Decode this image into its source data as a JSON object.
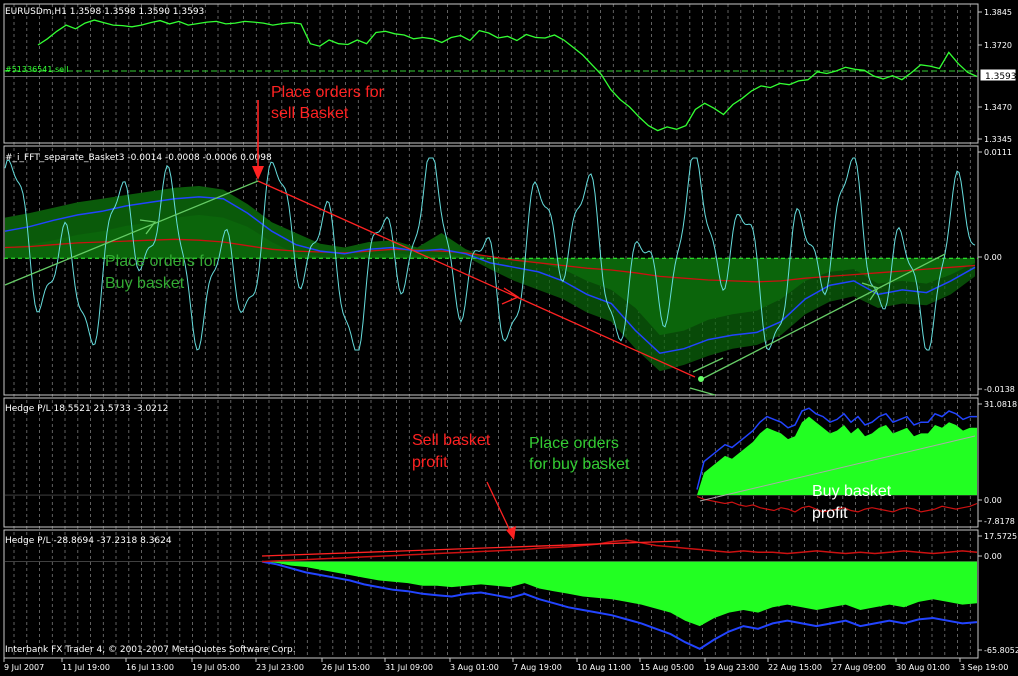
{
  "colors": {
    "background": "#000000",
    "frame": "#c8c8c8",
    "grid": "#a0a0a0",
    "price": "#33ff33",
    "cyan": "#66dddd",
    "blue": "#2244ff",
    "dark_red": "#cc1111",
    "fill_dark_green": "#0a5a0a",
    "fill_bright_green": "#22ff22",
    "ann_red": "#ff2222",
    "ann_green": "#33cc33",
    "ann_white": "#ffffff"
  },
  "panes": {
    "price": {
      "header": "EURUSDm,H1  1.3598 1.3598 1.3590 1.3593",
      "order_label": "#51336541 sell",
      "current_price": "1.3593",
      "ticks": [
        "1.3845",
        "1.3720",
        "1.3470",
        "1.3345"
      ]
    },
    "fft": {
      "header": "#_i_FFT_separate_Basket3 -0.0014 -0.0008 -0.0006 0.0098",
      "ticks": [
        "0.0111",
        "0.00",
        "-0.0138"
      ]
    },
    "pl_buy": {
      "header": "Hedge P/L 18.5521 21.5733 -3.0212",
      "ticks": [
        "31.0818",
        "0.00",
        "-7.8178"
      ]
    },
    "pl_sell": {
      "header": "Hedge P/L -28.8694 -37.2318 8.3624",
      "ticks": [
        "17.5725",
        "0.00",
        "-65.8052"
      ]
    }
  },
  "annotations": {
    "sell_place_1": "Place orders for",
    "sell_place_2": "sell Basket",
    "buy_place_left_1": "Place orders for",
    "buy_place_left_2": "Buy basket",
    "buy_place_right_1": "Place orders",
    "buy_place_right_2": "for buy basket",
    "sell_profit_1": "Sell basket",
    "sell_profit_2": "profit",
    "buy_profit_1": "Buy basket",
    "buy_profit_2": "profit"
  },
  "footer": "Interbank FX Trader 4, © 2001-2007 MetaQuotes Software Corp.",
  "chart_data": {
    "type": "line",
    "x_ticks": [
      "9 Jul 2007",
      "11 Jul 19:00",
      "16 Jul 13:00",
      "19 Jul 05:00",
      "23 Jul 23:00",
      "26 Jul 15:00",
      "31 Jul 09:00",
      "3 Aug 01:00",
      "7 Aug 19:00",
      "10 Aug 11:00",
      "15 Aug 05:00",
      "19 Aug 23:00",
      "22 Aug 15:00",
      "27 Aug 09:00",
      "30 Aug 01:00",
      "3 Sep 19:00"
    ],
    "price": {
      "symbol": "EURUSDm,H1",
      "ylim": [
        1.3325,
        1.3885
      ],
      "current": 1.3593,
      "order_level": 1.3615,
      "series": [
        1.372,
        1.3745,
        1.3775,
        1.38,
        1.3785,
        1.3808,
        1.382,
        1.381,
        1.38,
        1.3798,
        1.3793,
        1.38,
        1.381,
        1.3818,
        1.3805,
        1.3815,
        1.38,
        1.3806,
        1.3812,
        1.3815,
        1.3805,
        1.3808,
        1.3815,
        1.3812,
        1.3808,
        1.38,
        1.3806,
        1.381,
        1.3805,
        1.3725,
        1.3715,
        1.374,
        1.3725,
        1.3722,
        1.374,
        1.3725,
        1.377,
        1.3775,
        1.3765,
        1.376,
        1.3745,
        1.375,
        1.3745,
        1.373,
        1.375,
        1.3758,
        1.3738,
        1.3778,
        1.3768,
        1.3748,
        1.3755,
        1.3738,
        1.3762,
        1.375,
        1.3748,
        1.376,
        1.374,
        1.371,
        1.368,
        1.364,
        1.36,
        1.354,
        1.35,
        1.347,
        1.343,
        1.3395,
        1.3375,
        1.339,
        1.338,
        1.3395,
        1.346,
        1.3485,
        1.3465,
        1.344,
        1.348,
        1.3505,
        1.3535,
        1.3555,
        1.3548,
        1.3565,
        1.356,
        1.3575,
        1.358,
        1.3612,
        1.3605,
        1.3615,
        1.363,
        1.3622,
        1.3618,
        1.3595,
        1.3583,
        1.3596,
        1.358,
        1.3608,
        1.364,
        1.3635,
        1.3625,
        1.369,
        1.3645,
        1.361,
        1.3593
      ]
    },
    "fft": {
      "ylim": [
        -0.0138,
        0.0111
      ],
      "zero": 0,
      "blue_upper": [
        0.003,
        0.0035,
        0.0042,
        0.0048,
        0.0052,
        0.0058,
        0.0062,
        0.0066,
        0.0068,
        0.0066,
        0.005,
        0.003,
        0.0015,
        0.0008,
        0.0005,
        0.001,
        0.0012,
        0.0008,
        0.001,
        0.0005,
        -0.0005,
        -0.001,
        -0.0015,
        -0.0025,
        -0.004,
        -0.005,
        -0.008,
        -0.0105,
        -0.01,
        -0.009,
        -0.0085,
        -0.0082,
        -0.007,
        -0.0045,
        -0.003,
        -0.0025,
        -0.004,
        -0.0035,
        -0.0038,
        -0.0025,
        -0.001
      ],
      "green_upper": [
        0.0045,
        0.005,
        0.0056,
        0.0062,
        0.0066,
        0.007,
        0.0074,
        0.0078,
        0.008,
        0.0076,
        0.006,
        0.004,
        0.0028,
        0.0016,
        0.0012,
        0.0018,
        0.002,
        0.0012,
        0.0028,
        0.001,
        0.0,
        -0.0002,
        -0.0005,
        -0.0012,
        -0.0025,
        -0.0035,
        -0.0055,
        -0.0085,
        -0.008,
        -0.0068,
        -0.0062,
        -0.0058,
        -0.0045,
        -0.0025,
        -0.0015,
        -0.0012,
        -0.0028,
        -0.0025,
        -0.0028,
        -0.0018,
        -0.0005
      ],
      "green_lower": [
        0.0012,
        0.0015,
        0.002,
        0.0026,
        0.003,
        0.0036,
        0.004,
        0.0045,
        0.0048,
        0.0045,
        0.0035,
        0.0018,
        0.0005,
        0.0002,
        0.0001,
        0.0004,
        0.0006,
        0.0003,
        0.0004,
        0.0002,
        -0.0012,
        -0.0025,
        -0.0035,
        -0.0045,
        -0.006,
        -0.007,
        -0.01,
        -0.0125,
        -0.0118,
        -0.0108,
        -0.01,
        -0.0096,
        -0.0085,
        -0.0062,
        -0.0048,
        -0.0042,
        -0.0055,
        -0.005,
        -0.0052,
        -0.004,
        -0.002
      ],
      "dark_red": [
        0.0012,
        0.0013,
        0.0015,
        0.0017,
        0.0018,
        0.0019,
        0.002,
        0.0021,
        0.002,
        0.0018,
        0.0014,
        0.001,
        0.0008,
        0.0007,
        0.0006,
        0.0008,
        0.001,
        0.0009,
        0.0008,
        0.0006,
        0.0002,
        -0.0002,
        -0.0005,
        -0.0008,
        -0.0011,
        -0.0013,
        -0.0016,
        -0.002,
        -0.0022,
        -0.0024,
        -0.0025,
        -0.0026,
        -0.0025,
        -0.0022,
        -0.002,
        -0.0018,
        -0.0016,
        -0.0014,
        -0.0012,
        -0.001,
        -0.0008
      ]
    },
    "pl_buy": {
      "ylim": [
        -7.8178,
        31.0818
      ],
      "start_index": 63,
      "green": [
        0,
        8,
        10,
        12,
        14,
        13,
        15,
        17,
        19,
        22,
        24,
        23,
        22,
        20,
        21,
        26,
        28,
        26,
        24,
        22,
        23,
        25,
        22,
        24,
        21,
        22,
        24,
        25,
        22,
        23,
        24,
        21,
        22,
        22,
        25,
        24,
        26,
        25,
        23,
        24,
        24
      ],
      "blue": [
        2,
        12,
        14,
        16,
        18,
        17,
        19,
        21,
        23,
        26,
        28,
        27,
        26,
        24,
        25,
        30,
        31,
        29,
        28,
        26,
        27,
        29,
        26,
        28,
        25,
        26,
        28,
        29,
        26,
        27,
        28,
        25,
        26,
        26,
        29,
        28,
        30,
        29,
        27,
        28,
        28
      ],
      "red": [
        -0.5,
        -1.5,
        -2.0,
        -2.5,
        -3.0,
        -2.5,
        -3.5,
        -4.0,
        -3.5,
        -4.5,
        -5.0,
        -5.5,
        -4.5,
        -5.0,
        -6.0,
        -4.5,
        -4.0,
        -5.0,
        -6.0,
        -5.5,
        -5.0,
        -4.5,
        -5.5,
        -6.0,
        -5.0,
        -4.5,
        -5.0,
        -5.5,
        -6.0,
        -5.0,
        -4.5,
        -5.0,
        -6.0,
        -5.5,
        -5.0,
        -4.0,
        -4.5,
        -5.0,
        -4.5,
        -4.0,
        -3.0
      ]
    },
    "pl_sell": {
      "ylim": [
        -65.8052,
        17.5725
      ],
      "start_index": 25,
      "green": [
        0,
        -1,
        -3,
        -4,
        -6,
        -8,
        -10,
        -12,
        -14,
        -15,
        -16,
        -18,
        -18,
        -19,
        -18,
        -17,
        -18,
        -19,
        -16,
        -20,
        -22,
        -24,
        -26,
        -27,
        -28,
        -30,
        -32,
        -35,
        -38,
        -44,
        -48,
        -42,
        -38,
        -36,
        -38,
        -34,
        -32,
        -34,
        -36,
        -34,
        -32,
        -36,
        -34,
        -32,
        -34,
        -30,
        -28,
        -30,
        -32,
        -31
      ],
      "blue": [
        0,
        -2,
        -5,
        -8,
        -10,
        -12,
        -14,
        -17,
        -19,
        -21,
        -22,
        -24,
        -25,
        -26,
        -24,
        -23,
        -25,
        -27,
        -24,
        -28,
        -31,
        -34,
        -36,
        -38,
        -40,
        -43,
        -46,
        -50,
        -54,
        -60,
        -65,
        -58,
        -52,
        -48,
        -50,
        -46,
        -44,
        -46,
        -48,
        -46,
        -44,
        -48,
        -46,
        -44,
        -46,
        -43,
        -42,
        -44,
        -46,
        -45
      ],
      "red": [
        0,
        0.5,
        1,
        1.5,
        2,
        2.5,
        3,
        3.5,
        4,
        4.5,
        5,
        5.5,
        6,
        6.5,
        7,
        7.5,
        8,
        8.5,
        9,
        10,
        10.5,
        11,
        12,
        13,
        15,
        16,
        14,
        12,
        11,
        10,
        9,
        8,
        7,
        8,
        7,
        7,
        6,
        7,
        8,
        7,
        6,
        7,
        6,
        7,
        8,
        7,
        6,
        7,
        8,
        7
      ]
    }
  }
}
